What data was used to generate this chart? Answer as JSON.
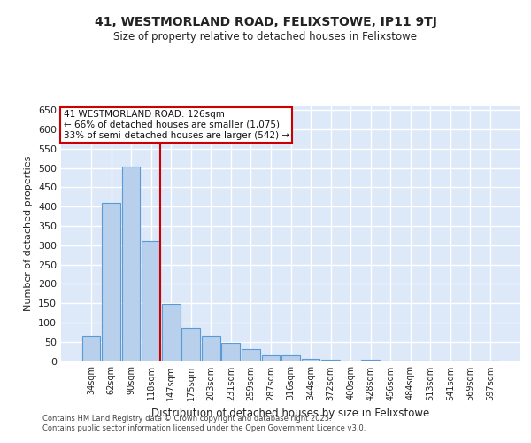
{
  "title1": "41, WESTMORLAND ROAD, FELIXSTOWE, IP11 9TJ",
  "title2": "Size of property relative to detached houses in Felixstowe",
  "xlabel": "Distribution of detached houses by size in Felixstowe",
  "ylabel": "Number of detached properties",
  "categories": [
    "34sqm",
    "62sqm",
    "90sqm",
    "118sqm",
    "147sqm",
    "175sqm",
    "203sqm",
    "231sqm",
    "259sqm",
    "287sqm",
    "316sqm",
    "344sqm",
    "372sqm",
    "400sqm",
    "428sqm",
    "456sqm",
    "484sqm",
    "513sqm",
    "541sqm",
    "569sqm",
    "597sqm"
  ],
  "values": [
    65,
    410,
    505,
    310,
    148,
    85,
    65,
    48,
    30,
    15,
    15,
    5,
    3,
    1,
    3,
    1,
    1,
    1,
    1,
    1,
    1
  ],
  "bar_color": "#b8d0eb",
  "bar_edge_color": "#5b9bd5",
  "background_color": "#dde8f8",
  "grid_color": "#ffffff",
  "annotation_text": "41 WESTMORLAND ROAD: 126sqm\n← 66% of detached houses are smaller (1,075)\n33% of semi-detached houses are larger (542) →",
  "annotation_box_color": "#ffffff",
  "annotation_box_edge": "#cc0000",
  "footer": "Contains HM Land Registry data © Crown copyright and database right 2025.\nContains public sector information licensed under the Open Government Licence v3.0.",
  "ylim": [
    0,
    660
  ],
  "yticks": [
    0,
    50,
    100,
    150,
    200,
    250,
    300,
    350,
    400,
    450,
    500,
    550,
    600,
    650
  ]
}
